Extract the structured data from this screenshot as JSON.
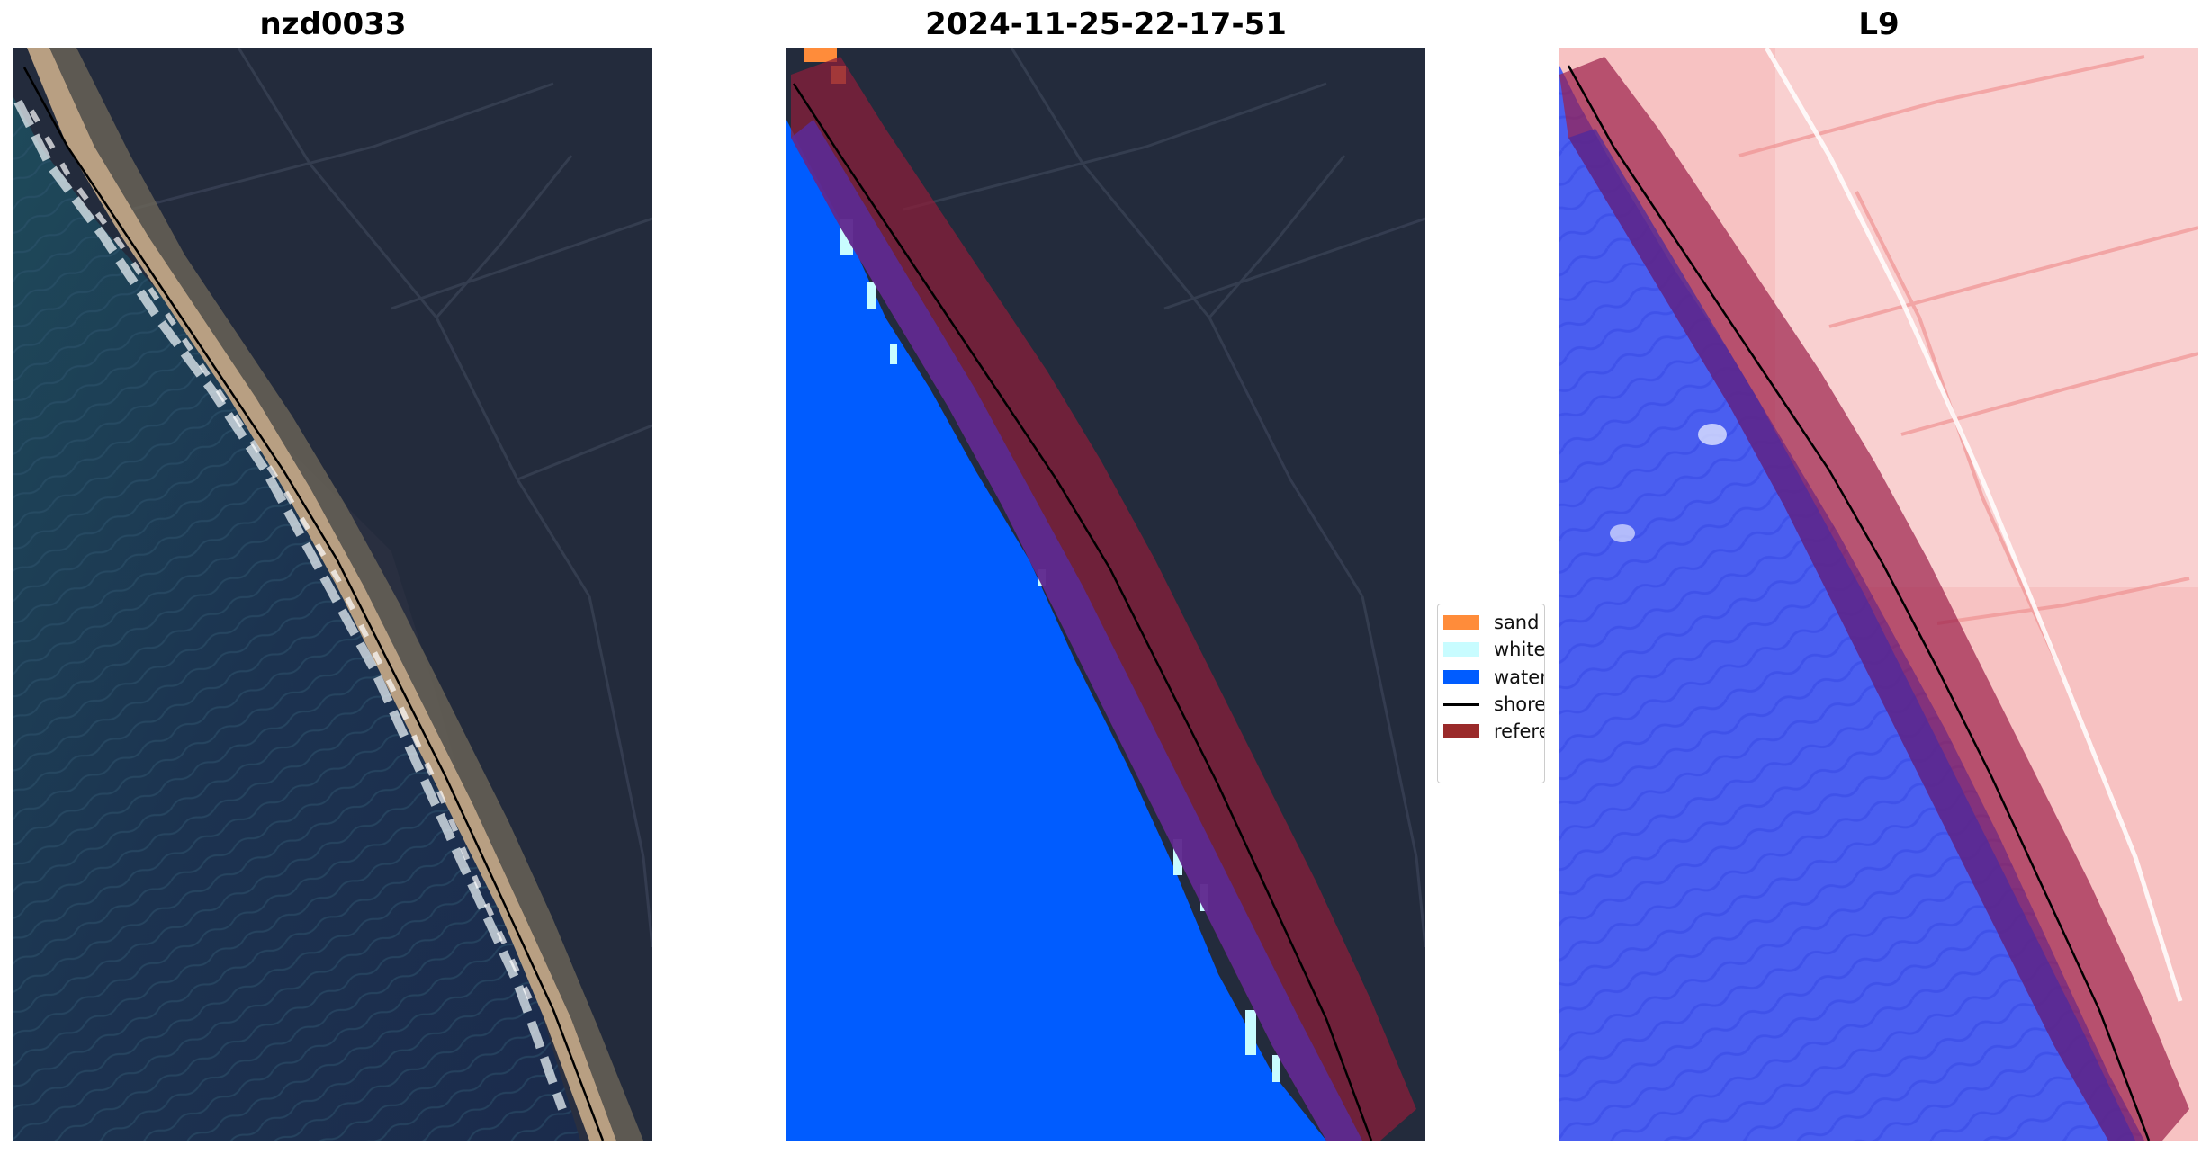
{
  "panels": [
    {
      "title": "nzd0033"
    },
    {
      "title": "2024-11-25-22-17-51"
    },
    {
      "title": "L9"
    }
  ],
  "legend": {
    "items": [
      {
        "label": "sand",
        "color": "#ff8c3a",
        "kind": "patch"
      },
      {
        "label": "whitewater",
        "color": "#c8fcff",
        "kind": "patch"
      },
      {
        "label": "water",
        "color": "#005cff",
        "kind": "patch"
      },
      {
        "label": "shoreline",
        "color": "#000000",
        "kind": "line"
      },
      {
        "label": "reference shoreline buffer",
        "color": "#9a2a2a",
        "kind": "patch"
      }
    ]
  }
}
